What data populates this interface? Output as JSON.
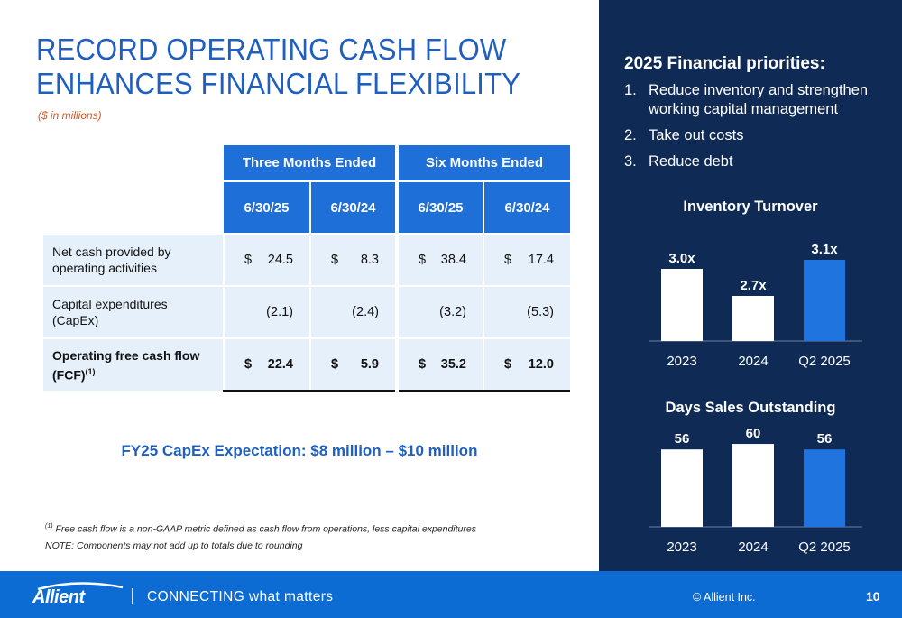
{
  "title": {
    "line1": "RECORD OPERATING CASH FLOW",
    "line2": "ENHANCES FINANCIAL FLEXIBILITY",
    "subtitle": "($ in millions)"
  },
  "table": {
    "group_headers": [
      "Three Months Ended",
      "Six Months Ended"
    ],
    "date_headers": [
      "6/30/25",
      "6/30/24",
      "6/30/25",
      "6/30/24"
    ],
    "rows": [
      {
        "label_line1": "Net cash provided by",
        "label_line2": "operating activities",
        "cells": [
          {
            "cur": "$",
            "val": "24.5"
          },
          {
            "cur": "$",
            "val": "8.3"
          },
          {
            "cur": "$",
            "val": "38.4"
          },
          {
            "cur": "$",
            "val": "17.4"
          }
        ]
      },
      {
        "label_line1": "Capital expenditures",
        "label_line2": "(CapEx)",
        "cells": [
          {
            "cur": "",
            "val": "(2.1)"
          },
          {
            "cur": "",
            "val": "(2.4)"
          },
          {
            "cur": "",
            "val": "(3.2)"
          },
          {
            "cur": "",
            "val": "(5.3)"
          }
        ]
      },
      {
        "label_line1": "Operating free cash flow",
        "label_line2": "(FCF)",
        "label_sup": "(1)",
        "cells": [
          {
            "cur": "$",
            "val": "22.4"
          },
          {
            "cur": "$",
            "val": "5.9"
          },
          {
            "cur": "$",
            "val": "35.2"
          },
          {
            "cur": "$",
            "val": "12.0"
          }
        ]
      }
    ]
  },
  "capex_expectation": "FY25 CapEx Expectation: $8 million – $10 million",
  "footnotes": {
    "note1_sup": "(1)",
    "note1": "Free cash flow is a non-GAAP metric defined as cash flow from operations, less capital expenditures",
    "note2": "NOTE: Components may not add up to totals due to rounding"
  },
  "priorities": {
    "title": "2025 Financial priorities:",
    "items": [
      {
        "num": "1.",
        "line1": "Reduce inventory and strengthen",
        "line2": "working capital management"
      },
      {
        "num": "2.",
        "line1": "Take out costs",
        "line2": ""
      },
      {
        "num": "3.",
        "line1": "Reduce debt",
        "line2": ""
      }
    ]
  },
  "chart_data": [
    {
      "type": "bar",
      "title": "Inventory Turnover",
      "categories": [
        "2023",
        "2024",
        "Q2 2025"
      ],
      "values": [
        3.0,
        2.7,
        3.1
      ],
      "data_labels": [
        "3.0x",
        "2.7x",
        "3.1x"
      ],
      "ylim": [
        2.2,
        3.2
      ],
      "bar_colors": [
        "#ffffff",
        "#ffffff",
        "#1f74e0"
      ],
      "grid": false
    },
    {
      "type": "bar",
      "title": "Days Sales Outstanding",
      "categories": [
        "2023",
        "2024",
        "Q2 2025"
      ],
      "values": [
        56,
        60,
        56
      ],
      "data_labels": [
        "56",
        "60",
        "56"
      ],
      "ylim": [
        0,
        62
      ],
      "bar_colors": [
        "#ffffff",
        "#ffffff",
        "#1f74e0"
      ],
      "grid": false
    }
  ],
  "footer": {
    "logo_text": "Allient",
    "tagline_caps": "CONNECTING",
    "tagline_rest": " what matters",
    "copyright": "© Allient Inc.",
    "page_number": "10"
  },
  "colors": {
    "accent_blue": "#1f6fd8",
    "title_blue": "#1f5fbf",
    "navy_panel": "#0e2a55",
    "footer_blue": "#0d6cd3",
    "subtitle_orange": "#d9541e"
  }
}
